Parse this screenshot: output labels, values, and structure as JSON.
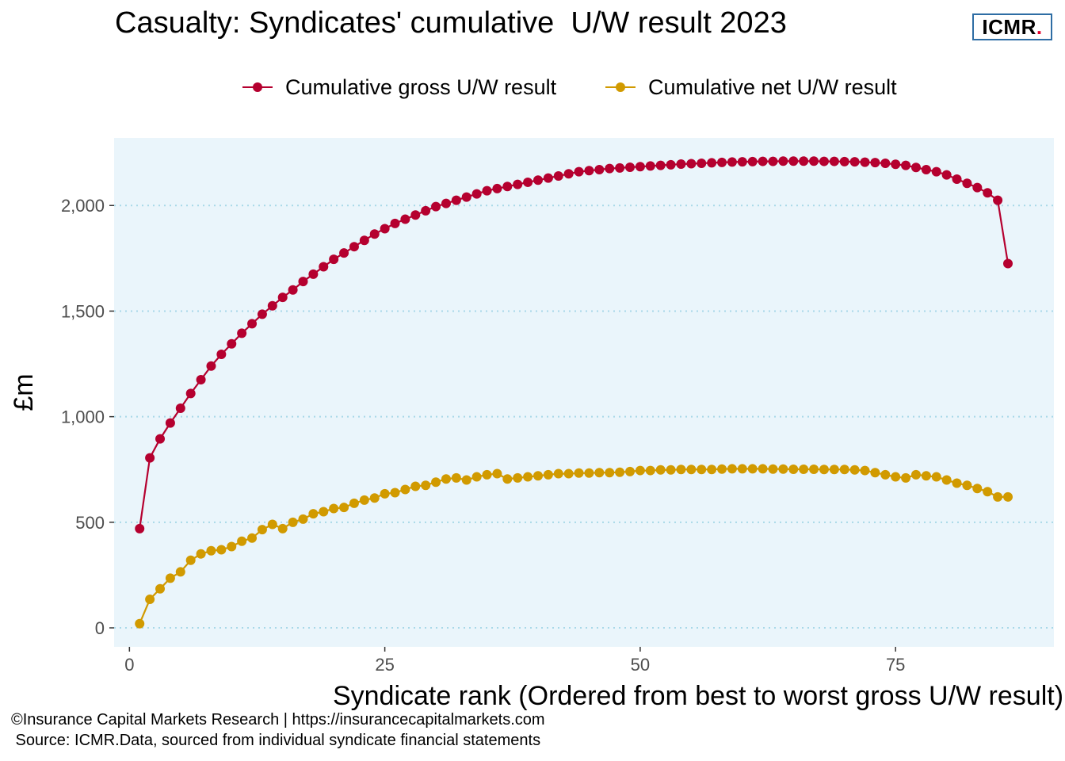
{
  "header": {
    "title": "Casualty: Syndicates' cumulative  U/W result 2023",
    "logo_text": "ICMR",
    "logo_dot": "."
  },
  "colors": {
    "gross": "#b5002f",
    "net": "#d19a00",
    "panel": "#eaf5fb",
    "grid": "#a8d8e8",
    "logo_border": "#2e6da4",
    "logo_dot": "#e4002b"
  },
  "footer": {
    "line1": "©Insurance Capital Markets Research | https://insurancecapitalmarkets.com",
    "line2": " Source: ICMR.Data, sourced from individual syndicate financial statements"
  },
  "chart_data": {
    "type": "line",
    "title": "Casualty: Syndicates' cumulative  U/W result 2023",
    "xlabel": "Syndicate rank (Ordered from best to worst gross U/W result)",
    "ylabel": "£m",
    "xlim": [
      -1.5,
      90.5
    ],
    "ylim": [
      -90,
      2320
    ],
    "x_ticks": [
      0,
      25,
      50,
      75
    ],
    "x_tick_labels": [
      "0",
      "25",
      "50",
      "75"
    ],
    "y_ticks": [
      0,
      500,
      1000,
      1500,
      2000
    ],
    "y_tick_labels": [
      "0",
      "500",
      "1,000",
      "1,500",
      "2,000"
    ],
    "grid": "horizontal dotted",
    "legend_position": "top",
    "x": [
      1,
      2,
      3,
      4,
      5,
      6,
      7,
      8,
      9,
      10,
      11,
      12,
      13,
      14,
      15,
      16,
      17,
      18,
      19,
      20,
      21,
      22,
      23,
      24,
      25,
      26,
      27,
      28,
      29,
      30,
      31,
      32,
      33,
      34,
      35,
      36,
      37,
      38,
      39,
      40,
      41,
      42,
      43,
      44,
      45,
      46,
      47,
      48,
      49,
      50,
      51,
      52,
      53,
      54,
      55,
      56,
      57,
      58,
      59,
      60,
      61,
      62,
      63,
      64,
      65,
      66,
      67,
      68,
      69,
      70,
      71,
      72,
      73,
      74,
      75,
      76,
      77,
      78,
      79,
      80,
      81,
      82,
      83,
      84,
      85,
      86
    ],
    "series": [
      {
        "name": "Cumulative gross U/W result",
        "values": [
          470,
          805,
          895,
          970,
          1040,
          1110,
          1175,
          1240,
          1295,
          1345,
          1395,
          1440,
          1485,
          1525,
          1565,
          1600,
          1640,
          1675,
          1710,
          1745,
          1775,
          1805,
          1835,
          1865,
          1890,
          1915,
          1935,
          1955,
          1975,
          1995,
          2010,
          2025,
          2040,
          2055,
          2070,
          2080,
          2090,
          2100,
          2110,
          2120,
          2130,
          2140,
          2150,
          2160,
          2165,
          2170,
          2175,
          2178,
          2181,
          2184,
          2187,
          2190,
          2193,
          2196,
          2198,
          2200,
          2202,
          2204,
          2206,
          2207,
          2208,
          2209,
          2209,
          2210,
          2210,
          2210,
          2210,
          2209,
          2209,
          2208,
          2207,
          2205,
          2203,
          2200,
          2195,
          2190,
          2180,
          2170,
          2160,
          2145,
          2125,
          2105,
          2085,
          2060,
          2025,
          1725
        ]
      },
      {
        "name": "Cumulative net U/W result",
        "values": [
          20,
          135,
          185,
          235,
          265,
          320,
          350,
          365,
          370,
          385,
          410,
          425,
          465,
          490,
          470,
          500,
          515,
          540,
          550,
          565,
          570,
          590,
          605,
          615,
          635,
          640,
          655,
          670,
          675,
          690,
          705,
          710,
          700,
          715,
          725,
          730,
          705,
          710,
          715,
          720,
          725,
          730,
          730,
          733,
          733,
          735,
          735,
          737,
          740,
          745,
          745,
          748,
          748,
          750,
          750,
          750,
          750,
          752,
          753,
          753,
          753,
          753,
          752,
          752,
          751,
          751,
          751,
          750,
          750,
          750,
          748,
          745,
          735,
          725,
          715,
          710,
          725,
          720,
          715,
          700,
          685,
          675,
          660,
          645,
          620,
          620
        ]
      }
    ]
  }
}
